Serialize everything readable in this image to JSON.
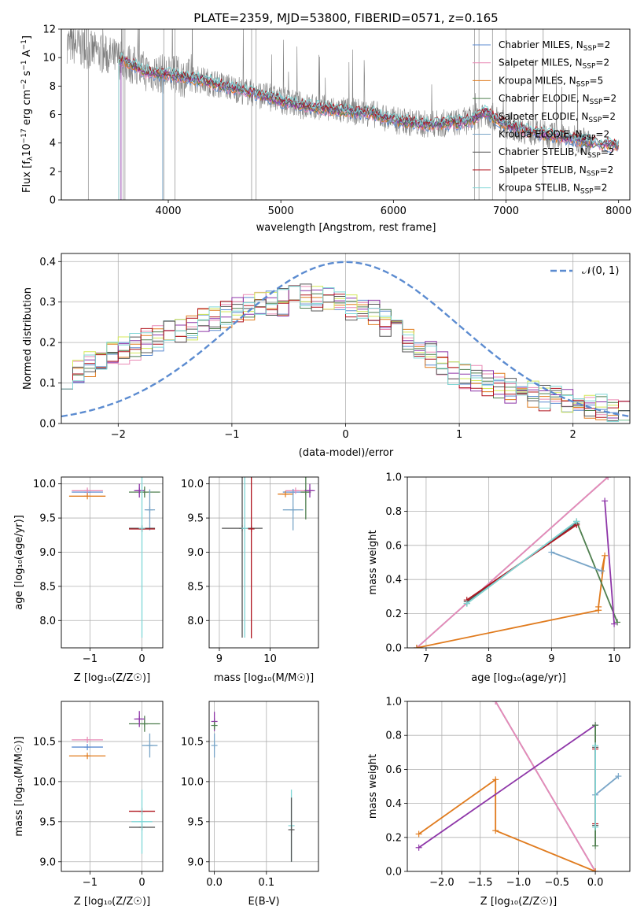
{
  "colors": {
    "model_lines": [
      "#5b8bd0",
      "#e98ab5",
      "#e07b1e",
      "#4f7f4f",
      "#8e36a8",
      "#7aa6c8",
      "#555555",
      "#b0141e",
      "#7fd6d6"
    ],
    "hist_lines": [
      "#5b8bd0",
      "#e98ab5",
      "#e07b1e",
      "#4f7f4f",
      "#8e36a8",
      "#d4e857",
      "#555555",
      "#b0141e",
      "#7fd6d6"
    ],
    "data_line": "#7f7f7f",
    "gauss": "#5b8bd0"
  },
  "chart_data": [
    {
      "id": "spectrum",
      "type": "line",
      "title": "PLATE=2359, MJD=53800, FIBERID=0571, z=0.165",
      "xlabel": "wavelength [Angstrom, rest frame]",
      "ylabel": "Flux [f_λ10^-17 erg cm^-2 s^-1 A^-1]",
      "xlim": [
        3050,
        8100
      ],
      "ylim": [
        0,
        12
      ],
      "xticks": [
        "4000",
        "5000",
        "6000",
        "7000",
        "8000"
      ],
      "yticks": [
        "0",
        "2",
        "4",
        "6",
        "8",
        "10",
        "12"
      ],
      "legend_position": "top-right",
      "legend": [
        {
          "label": "Chabrier MILES, N",
          "sub": "SSP",
          "tail": "=2"
        },
        {
          "label": "Salpeter MILES, N",
          "sub": "SSP",
          "tail": "=2"
        },
        {
          "label": "Kroupa MILES, N",
          "sub": "SSP",
          "tail": "=5"
        },
        {
          "label": "Chabrier ELODIE, N",
          "sub": "SSP",
          "tail": "=2"
        },
        {
          "label": "Salpeter ELODIE, N",
          "sub": "SSP",
          "tail": "=2"
        },
        {
          "label": "Kroupa ELODIE, N",
          "sub": "SSP",
          "tail": "=2"
        },
        {
          "label": "Chabrier STELIB, N",
          "sub": "SSP",
          "tail": "=2"
        },
        {
          "label": "Salpeter STELIB, N",
          "sub": "SSP",
          "tail": "=2"
        },
        {
          "label": "Kroupa STELIB, N",
          "sub": "SSP",
          "tail": "=2"
        }
      ],
      "model_start_x": [
        3560,
        3560,
        3560,
        3560,
        3580,
        3950,
        3560,
        3560,
        3560
      ],
      "continuum": {
        "x": [
          3100,
          3600,
          3800,
          4000,
          4300,
          4600,
          5000,
          5200,
          5500,
          5800,
          6000,
          6300,
          6500,
          6700,
          6800,
          7000,
          7200,
          7500,
          7800,
          8000
        ],
        "y": [
          11,
          9.8,
          9.0,
          8.8,
          8.4,
          7.8,
          7.0,
          6.6,
          6.3,
          6.1,
          5.6,
          5.3,
          5.4,
          5.6,
          6.2,
          5.3,
          4.8,
          4.4,
          4.0,
          3.8
        ]
      }
    },
    {
      "id": "residual-histogram",
      "type": "line",
      "xlabel": "(data-model)/error",
      "ylabel": "Normed distribution",
      "xlim": [
        -2.5,
        2.5
      ],
      "ylim": [
        0,
        0.42
      ],
      "xticks": [
        "−2",
        "−1",
        "0",
        "1",
        "2"
      ],
      "yticks": [
        "0.0",
        "0.1",
        "0.2",
        "0.3",
        "0.4"
      ],
      "legend_position": "top-right",
      "legend": [
        "𝒩(0, 1)"
      ],
      "bins": {
        "x_start": -2.5,
        "bin_width": 0.1,
        "values": [
          0.12,
          0.13,
          0.15,
          0.16,
          0.17,
          0.18,
          0.19,
          0.2,
          0.21,
          0.22,
          0.23,
          0.24,
          0.25,
          0.26,
          0.27,
          0.28,
          0.29,
          0.29,
          0.3,
          0.3,
          0.31,
          0.31,
          0.31,
          0.31,
          0.3,
          0.29,
          0.28,
          0.27,
          0.25,
          0.23,
          0.21,
          0.19,
          0.17,
          0.15,
          0.13,
          0.12,
          0.11,
          0.1,
          0.09,
          0.08,
          0.08,
          0.07,
          0.06,
          0.06,
          0.05,
          0.05,
          0.04,
          0.04,
          0.03,
          0.03
        ]
      }
    },
    {
      "id": "age-vs-metallicity",
      "type": "scatter",
      "xlabel": "Z [log₁₀(Z/Z☉)]",
      "ylabel": "age  [log₁₀(age/yr)]",
      "xlim": [
        -1.55,
        0.4
      ],
      "ylim": [
        7.6,
        10.1
      ],
      "xticks": [
        "−1",
        "0"
      ],
      "yticks": [
        "8.0",
        "8.5",
        "9.0",
        "9.5",
        "10.0"
      ],
      "points": [
        {
          "c": 0,
          "x": -1.05,
          "y": 9.88,
          "xe": 0.3,
          "ye": 0.0
        },
        {
          "c": 1,
          "x": -1.05,
          "y": 9.9,
          "xe": 0.3,
          "ye": 0.0
        },
        {
          "c": 2,
          "x": -1.05,
          "y": 9.82,
          "xe": 0.35,
          "ye": 0.0
        },
        {
          "c": 3,
          "x": 0.05,
          "y": 9.88,
          "xe": 0.3,
          "ye": 0.08
        },
        {
          "c": 4,
          "x": -0.05,
          "y": 9.9,
          "xe": 0.1,
          "ye": 0.1
        },
        {
          "c": 5,
          "x": 0.15,
          "y": 9.62,
          "xe": 0.1,
          "ye": 0.3
        },
        {
          "c": 6,
          "x": 0.0,
          "y": 9.35,
          "xe": 0.25,
          "ye": 0.0
        },
        {
          "c": 7,
          "x": 0.0,
          "y": 9.34,
          "xe": 0.25,
          "ye": 0.0
        },
        {
          "c": 8,
          "x": 0.0,
          "y": 9.35,
          "xe": 0.0,
          "ye": 1.6
        }
      ]
    },
    {
      "id": "age-vs-mass",
      "type": "scatter",
      "xlabel": "mass [log₁₀(M/M☉)]",
      "xlim": [
        8.8,
        10.95
      ],
      "ylim": [
        7.6,
        10.1
      ],
      "xticks": [
        "9",
        "10"
      ],
      "yticks": [
        "8.0",
        "8.5",
        "9.0",
        "9.5",
        "10.0"
      ],
      "points": [
        {
          "c": 0,
          "x": 10.45,
          "y": 9.88,
          "xe": 0.2,
          "ye": 0.0
        },
        {
          "c": 1,
          "x": 10.5,
          "y": 9.9,
          "xe": 0.2,
          "ye": 0.0
        },
        {
          "c": 2,
          "x": 10.3,
          "y": 9.85,
          "xe": 0.15,
          "ye": 0.0
        },
        {
          "c": 3,
          "x": 10.7,
          "y": 9.88,
          "xe": 0.1,
          "ye": 0.4
        },
        {
          "c": 4,
          "x": 10.78,
          "y": 9.9,
          "xe": 0.1,
          "ye": 0.1
        },
        {
          "c": 5,
          "x": 10.45,
          "y": 9.62,
          "xe": 0.2,
          "ye": 0.3
        },
        {
          "c": 6,
          "x": 9.45,
          "y": 9.35,
          "xe": 0.4,
          "ye": 1.6
        },
        {
          "c": 7,
          "x": 9.63,
          "y": 9.34,
          "xe": 0.0,
          "ye": 1.6
        },
        {
          "c": 8,
          "x": 9.5,
          "y": 9.35,
          "xe": 0.0,
          "ye": 1.6
        }
      ]
    },
    {
      "id": "mass-weight-vs-age",
      "type": "line",
      "xlabel": "age  [log₁₀(age/yr)]",
      "ylabel": "mass weight",
      "xlim": [
        6.7,
        10.25
      ],
      "ylim": [
        0,
        1.0
      ],
      "xticks": [
        "7",
        "8",
        "9",
        "10"
      ],
      "yticks": [
        "0.0",
        "0.2",
        "0.4",
        "0.6",
        "0.8",
        "1.0"
      ],
      "series": [
        {
          "c": 0,
          "x": [
            6.85,
            9.9
          ],
          "y": [
            0.0,
            1.0
          ]
        },
        {
          "c": 1,
          "x": [
            6.85,
            9.9
          ],
          "y": [
            0.0,
            1.0
          ]
        },
        {
          "c": 2,
          "x": [
            6.85,
            9.75,
            9.75,
            9.85,
            9.8
          ],
          "y": [
            0.0,
            0.22,
            0.24,
            0.54,
            0.45
          ]
        },
        {
          "c": 3,
          "x": [
            7.65,
            9.4,
            10.05
          ],
          "y": [
            0.26,
            0.74,
            0.15
          ]
        },
        {
          "c": 4,
          "x": [
            9.85,
            10.0
          ],
          "y": [
            0.86,
            0.14
          ]
        },
        {
          "c": 5,
          "x": [
            9.0,
            9.8
          ],
          "y": [
            0.56,
            0.45
          ]
        },
        {
          "c": 6,
          "x": [
            7.65,
            9.4
          ],
          "y": [
            0.27,
            0.73
          ]
        },
        {
          "c": 7,
          "x": [
            7.65,
            9.4
          ],
          "y": [
            0.28,
            0.72
          ]
        },
        {
          "c": 8,
          "x": [
            7.65,
            9.4
          ],
          "y": [
            0.26,
            0.74
          ]
        }
      ]
    },
    {
      "id": "mass-vs-metallicity",
      "type": "scatter",
      "xlabel": "Z [log₁₀(Z/Z☉)]",
      "ylabel": "mass [log₁₀(M/M☉)]",
      "xlim": [
        -1.55,
        0.4
      ],
      "ylim": [
        8.88,
        11.0
      ],
      "xticks": [
        "−1",
        "0"
      ],
      "yticks": [
        "9.0",
        "9.5",
        "10.0",
        "10.5"
      ],
      "points": [
        {
          "c": 0,
          "x": -1.05,
          "y": 10.43,
          "xe": 0.3,
          "ye": 0.0
        },
        {
          "c": 1,
          "x": -1.05,
          "y": 10.52,
          "xe": 0.3,
          "ye": 0.0
        },
        {
          "c": 2,
          "x": -1.05,
          "y": 10.32,
          "xe": 0.35,
          "ye": 0.0
        },
        {
          "c": 3,
          "x": 0.05,
          "y": 10.72,
          "xe": 0.3,
          "ye": 0.1
        },
        {
          "c": 4,
          "x": -0.05,
          "y": 10.78,
          "xe": 0.1,
          "ye": 0.1
        },
        {
          "c": 5,
          "x": 0.15,
          "y": 10.45,
          "xe": 0.15,
          "ye": 0.15
        },
        {
          "c": 6,
          "x": 0.0,
          "y": 9.43,
          "xe": 0.25,
          "ye": 0.0
        },
        {
          "c": 7,
          "x": 0.0,
          "y": 9.63,
          "xe": 0.25,
          "ye": 0.0
        },
        {
          "c": 8,
          "x": 0.0,
          "y": 9.5,
          "xe": 0.2,
          "ye": 0.4
        }
      ]
    },
    {
      "id": "mass-vs-extinction",
      "type": "scatter",
      "xlabel": "E(B-V)",
      "xlim": [
        -0.01,
        0.2
      ],
      "ylim": [
        8.88,
        11.0
      ],
      "xticks": [
        "0.0",
        "0.1"
      ],
      "yticks": [
        "9.0",
        "9.5",
        "10.0",
        "10.5"
      ],
      "points": [
        {
          "c": 4,
          "x": 0.0,
          "y": 10.75,
          "xe": 0.0,
          "ye": 0.12
        },
        {
          "c": 5,
          "x": 0.0,
          "y": 10.45,
          "xe": 0.0,
          "ye": 0.15
        },
        {
          "c": 3,
          "x": 0.0,
          "y": 10.7,
          "xe": 0.0,
          "ye": 0.05
        },
        {
          "c": 8,
          "x": 0.148,
          "y": 9.45,
          "xe": 0.0,
          "ye": 0.45
        },
        {
          "c": 6,
          "x": 0.148,
          "y": 9.4,
          "xe": 0.0,
          "ye": 0.4
        }
      ]
    },
    {
      "id": "mass-weight-vs-metallicity",
      "type": "line",
      "xlabel": "Z [log₁₀(Z/Z☉)]",
      "ylabel": "mass weight",
      "xlim": [
        -2.45,
        0.45
      ],
      "ylim": [
        0,
        1.0
      ],
      "xticks": [
        "−2.0",
        "−1.5",
        "−1.0",
        "−0.5",
        "0.0"
      ],
      "yticks": [
        "0.0",
        "0.2",
        "0.4",
        "0.6",
        "0.8",
        "1.0"
      ],
      "series": [
        {
          "c": 0,
          "x": [
            -1.3,
            0.0
          ],
          "y": [
            1.0,
            0.0
          ]
        },
        {
          "c": 1,
          "x": [
            -1.3,
            0.0
          ],
          "y": [
            1.0,
            0.0
          ]
        },
        {
          "c": 2,
          "x": [
            -2.3,
            -1.3,
            -1.3,
            0.0
          ],
          "y": [
            0.22,
            0.54,
            0.24,
            0.0
          ]
        },
        {
          "c": 4,
          "x": [
            -2.3,
            0.0
          ],
          "y": [
            0.14,
            0.86
          ]
        },
        {
          "c": 3,
          "x": [
            0.0,
            0.0
          ],
          "y": [
            0.15,
            0.86
          ]
        },
        {
          "c": 5,
          "x": [
            0.0,
            0.3
          ],
          "y": [
            0.45,
            0.56
          ]
        },
        {
          "c": 6,
          "x": [
            0.0,
            0.0
          ],
          "y": [
            0.27,
            0.73
          ]
        },
        {
          "c": 7,
          "x": [
            0.0,
            0.0
          ],
          "y": [
            0.28,
            0.72
          ]
        },
        {
          "c": 8,
          "x": [
            0.0,
            0.0
          ],
          "y": [
            0.26,
            0.74
          ]
        }
      ]
    }
  ]
}
